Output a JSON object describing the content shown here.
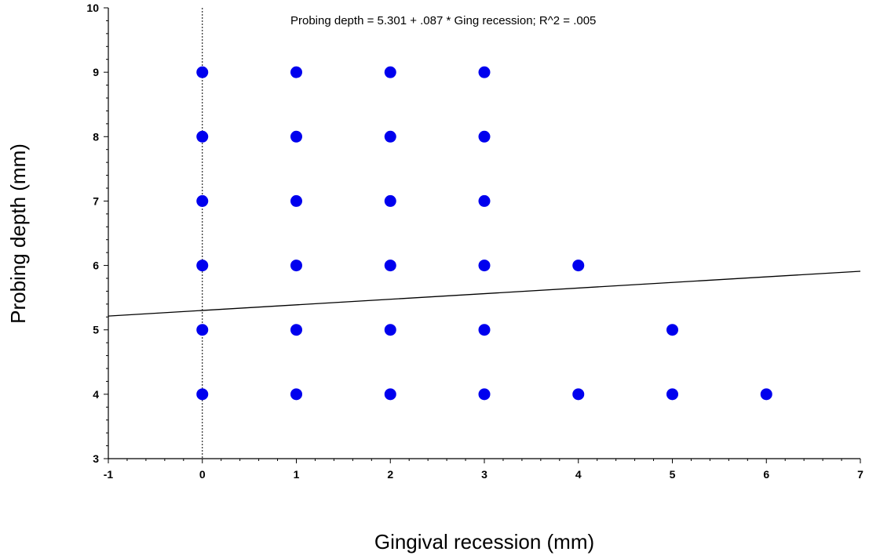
{
  "chart_data": {
    "type": "scatter",
    "xlabel": "Gingival recession (mm)",
    "ylabel": "Probing depth (mm)",
    "xlim": [
      -1,
      7
    ],
    "ylim": [
      3,
      10
    ],
    "x_ticks": [
      "-1",
      "0",
      "1",
      "2",
      "3",
      "4",
      "5",
      "6",
      "7"
    ],
    "y_ticks": [
      "3",
      "4",
      "5",
      "6",
      "7",
      "8",
      "9",
      "10"
    ],
    "annotation": "Probing depth = 5.301 + .087 * Ging recession; R^2 = .005",
    "regression": {
      "intercept": 5.301,
      "slope": 0.087
    },
    "reference_line_x": 0,
    "point_color": "#0000ee",
    "points": [
      {
        "x": 0,
        "y": 9
      },
      {
        "x": 0,
        "y": 8
      },
      {
        "x": 0,
        "y": 7
      },
      {
        "x": 0,
        "y": 6
      },
      {
        "x": 0,
        "y": 5
      },
      {
        "x": 0,
        "y": 4
      },
      {
        "x": 1,
        "y": 9
      },
      {
        "x": 1,
        "y": 8
      },
      {
        "x": 1,
        "y": 7
      },
      {
        "x": 1,
        "y": 6
      },
      {
        "x": 1,
        "y": 5
      },
      {
        "x": 1,
        "y": 4
      },
      {
        "x": 2,
        "y": 9
      },
      {
        "x": 2,
        "y": 8
      },
      {
        "x": 2,
        "y": 7
      },
      {
        "x": 2,
        "y": 6
      },
      {
        "x": 2,
        "y": 5
      },
      {
        "x": 2,
        "y": 4
      },
      {
        "x": 3,
        "y": 9
      },
      {
        "x": 3,
        "y": 8
      },
      {
        "x": 3,
        "y": 7
      },
      {
        "x": 3,
        "y": 6
      },
      {
        "x": 3,
        "y": 5
      },
      {
        "x": 3,
        "y": 4
      },
      {
        "x": 4,
        "y": 6
      },
      {
        "x": 4,
        "y": 4
      },
      {
        "x": 5,
        "y": 5
      },
      {
        "x": 5,
        "y": 4
      },
      {
        "x": 6,
        "y": 4
      }
    ]
  }
}
